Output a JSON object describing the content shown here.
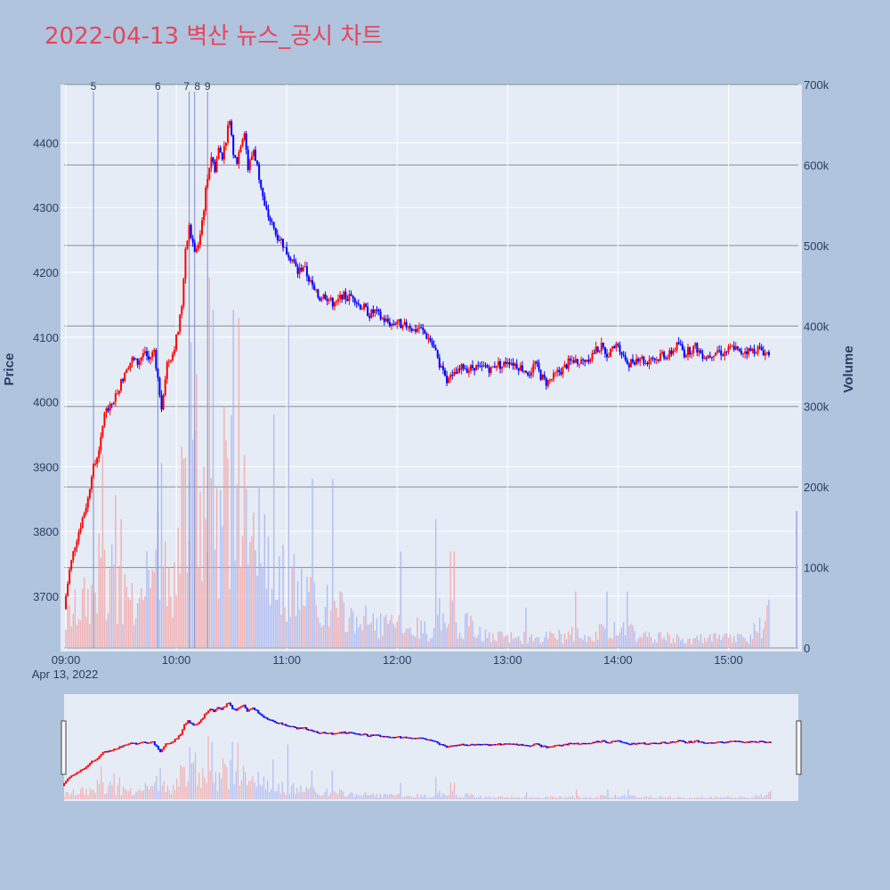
{
  "colors": {
    "background": "#b0c4de",
    "plot_bg": "#e5ecf6",
    "up": "#ff0000",
    "down": "#0000ff",
    "title": "#e8455a",
    "news_line": "#7f8cc9"
  },
  "chart_data": {
    "type": "candlestick",
    "title": "2022-04-13 벽산 뉴스_공시 차트",
    "ylabel": "Price",
    "y2label": "Volume",
    "date_label": "Apr 13, 2022",
    "ylim": [
      3620,
      4490
    ],
    "y2lim": [
      0,
      700000
    ],
    "price_ticks": [
      "3700",
      "3800",
      "3900",
      "4000",
      "4100",
      "4200",
      "4300",
      "4400"
    ],
    "volume_ticks": [
      "0",
      "100k",
      "200k",
      "300k",
      "400k",
      "500k",
      "600k",
      "700k"
    ],
    "x_range_minutes": [
      0,
      397
    ],
    "time_ticks": [
      {
        "label": "09:00",
        "minute": 0
      },
      {
        "label": "10:00",
        "minute": 60
      },
      {
        "label": "11:00",
        "minute": 120
      },
      {
        "label": "12:00",
        "minute": 180
      },
      {
        "label": "13:00",
        "minute": 240
      },
      {
        "label": "14:00",
        "minute": 300
      },
      {
        "label": "15:00",
        "minute": 360
      }
    ],
    "news_markers": [
      {
        "label": "5",
        "minute": 15
      },
      {
        "label": "6",
        "minute": 50
      },
      {
        "label": "7",
        "minute": 67
      },
      {
        "label": "8",
        "minute": 70
      },
      {
        "label": "9",
        "minute": 77
      }
    ],
    "price_path": [
      [
        0,
        3680
      ],
      [
        3,
        3740
      ],
      [
        6,
        3780
      ],
      [
        10,
        3820
      ],
      [
        13,
        3850
      ],
      [
        15,
        3890
      ],
      [
        17,
        3905
      ],
      [
        20,
        3940
      ],
      [
        22,
        3985
      ],
      [
        25,
        3990
      ],
      [
        28,
        4010
      ],
      [
        31,
        4030
      ],
      [
        34,
        4055
      ],
      [
        37,
        4065
      ],
      [
        40,
        4060
      ],
      [
        43,
        4075
      ],
      [
        46,
        4065
      ],
      [
        49,
        4080
      ],
      [
        51,
        4035
      ],
      [
        53,
        3995
      ],
      [
        56,
        4060
      ],
      [
        59,
        4075
      ],
      [
        62,
        4110
      ],
      [
        64,
        4150
      ],
      [
        66,
        4230
      ],
      [
        68,
        4270
      ],
      [
        70,
        4240
      ],
      [
        72,
        4230
      ],
      [
        74,
        4260
      ],
      [
        76,
        4300
      ],
      [
        78,
        4350
      ],
      [
        80,
        4380
      ],
      [
        82,
        4360
      ],
      [
        84,
        4390
      ],
      [
        86,
        4380
      ],
      [
        88,
        4405
      ],
      [
        90,
        4440
      ],
      [
        92,
        4380
      ],
      [
        94,
        4370
      ],
      [
        96,
        4400
      ],
      [
        98,
        4420
      ],
      [
        100,
        4360
      ],
      [
        103,
        4390
      ],
      [
        106,
        4350
      ],
      [
        109,
        4300
      ],
      [
        112,
        4280
      ],
      [
        115,
        4260
      ],
      [
        118,
        4250
      ],
      [
        121,
        4230
      ],
      [
        124,
        4220
      ],
      [
        127,
        4200
      ],
      [
        130,
        4210
      ],
      [
        133,
        4190
      ],
      [
        136,
        4170
      ],
      [
        139,
        4160
      ],
      [
        142,
        4165
      ],
      [
        145,
        4155
      ],
      [
        148,
        4150
      ],
      [
        151,
        4165
      ],
      [
        154,
        4160
      ],
      [
        157,
        4165
      ],
      [
        160,
        4150
      ],
      [
        163,
        4145
      ],
      [
        166,
        4135
      ],
      [
        169,
        4140
      ],
      [
        172,
        4130
      ],
      [
        175,
        4125
      ],
      [
        178,
        4120
      ],
      [
        181,
        4125
      ],
      [
        184,
        4115
      ],
      [
        187,
        4120
      ],
      [
        190,
        4110
      ],
      [
        193,
        4115
      ],
      [
        196,
        4105
      ],
      [
        199,
        4095
      ],
      [
        202,
        4075
      ],
      [
        205,
        4050
      ],
      [
        208,
        4030
      ],
      [
        211,
        4040
      ],
      [
        214,
        4045
      ],
      [
        217,
        4055
      ],
      [
        220,
        4050
      ],
      [
        223,
        4055
      ],
      [
        226,
        4050
      ],
      [
        229,
        4055
      ],
      [
        232,
        4050
      ],
      [
        235,
        4060
      ],
      [
        238,
        4055
      ],
      [
        241,
        4065
      ],
      [
        244,
        4060
      ],
      [
        247,
        4055
      ],
      [
        250,
        4050
      ],
      [
        253,
        4045
      ],
      [
        256,
        4060
      ],
      [
        259,
        4040
      ],
      [
        262,
        4030
      ],
      [
        265,
        4035
      ],
      [
        268,
        4045
      ],
      [
        271,
        4050
      ],
      [
        274,
        4060
      ],
      [
        277,
        4065
      ],
      [
        280,
        4060
      ],
      [
        283,
        4065
      ],
      [
        286,
        4070
      ],
      [
        289,
        4080
      ],
      [
        292,
        4085
      ],
      [
        295,
        4075
      ],
      [
        298,
        4080
      ],
      [
        301,
        4090
      ],
      [
        304,
        4070
      ],
      [
        307,
        4060
      ],
      [
        310,
        4065
      ],
      [
        313,
        4070
      ],
      [
        316,
        4060
      ],
      [
        319,
        4070
      ],
      [
        322,
        4065
      ],
      [
        325,
        4075
      ],
      [
        328,
        4070
      ],
      [
        331,
        4080
      ],
      [
        334,
        4090
      ],
      [
        337,
        4075
      ],
      [
        340,
        4080
      ],
      [
        343,
        4085
      ],
      [
        346,
        4075
      ],
      [
        349,
        4070
      ],
      [
        352,
        4075
      ],
      [
        355,
        4080
      ],
      [
        358,
        4075
      ],
      [
        361,
        4080
      ],
      [
        364,
        4085
      ],
      [
        367,
        4075
      ],
      [
        370,
        4080
      ],
      [
        373,
        4078
      ],
      [
        376,
        4082
      ],
      [
        379,
        4080
      ],
      [
        381,
        4075
      ],
      [
        382,
        4076
      ]
    ],
    "volume_envelope": [
      [
        0,
        40000
      ],
      [
        15,
        80000
      ],
      [
        20,
        120000
      ],
      [
        30,
        80000
      ],
      [
        40,
        70000
      ],
      [
        50,
        90000
      ],
      [
        60,
        120000
      ],
      [
        65,
        200000
      ],
      [
        70,
        250000
      ],
      [
        75,
        200000
      ],
      [
        80,
        220000
      ],
      [
        88,
        180000
      ],
      [
        92,
        250000
      ],
      [
        100,
        170000
      ],
      [
        110,
        110000
      ],
      [
        120,
        100000
      ],
      [
        130,
        80000
      ],
      [
        140,
        60000
      ],
      [
        150,
        50000
      ],
      [
        160,
        40000
      ],
      [
        180,
        30000
      ],
      [
        200,
        25000
      ],
      [
        205,
        60000
      ],
      [
        212,
        40000
      ],
      [
        230,
        15000
      ],
      [
        260,
        15000
      ],
      [
        280,
        20000
      ],
      [
        300,
        25000
      ],
      [
        320,
        15000
      ],
      [
        340,
        12000
      ],
      [
        370,
        15000
      ],
      [
        382,
        40000
      ]
    ],
    "volume_spikes": [
      {
        "minute": 20,
        "value": 240000
      },
      {
        "minute": 27,
        "value": 190000
      },
      {
        "minute": 30,
        "value": 160000
      },
      {
        "minute": 44,
        "value": 120000
      },
      {
        "minute": 50,
        "value": 170000
      },
      {
        "minute": 52,
        "value": 230000
      },
      {
        "minute": 63,
        "value": 250000
      },
      {
        "minute": 68,
        "value": 380000
      },
      {
        "minute": 71,
        "value": 340000
      },
      {
        "minute": 78,
        "value": 460000
      },
      {
        "minute": 80,
        "value": 420000
      },
      {
        "minute": 86,
        "value": 300000
      },
      {
        "minute": 91,
        "value": 420000
      },
      {
        "minute": 94,
        "value": 410000
      },
      {
        "minute": 105,
        "value": 200000
      },
      {
        "minute": 113,
        "value": 290000
      },
      {
        "minute": 121,
        "value": 400000
      },
      {
        "minute": 134,
        "value": 210000
      },
      {
        "minute": 145,
        "value": 210000
      },
      {
        "minute": 182,
        "value": 120000
      },
      {
        "minute": 201,
        "value": 160000
      },
      {
        "minute": 209,
        "value": 120000
      },
      {
        "minute": 211,
        "value": 120000
      },
      {
        "minute": 250,
        "value": 50000
      },
      {
        "minute": 277,
        "value": 70000
      },
      {
        "minute": 294,
        "value": 70000
      },
      {
        "minute": 305,
        "value": 70000
      },
      {
        "minute": 382,
        "value": 60000
      }
    ]
  }
}
